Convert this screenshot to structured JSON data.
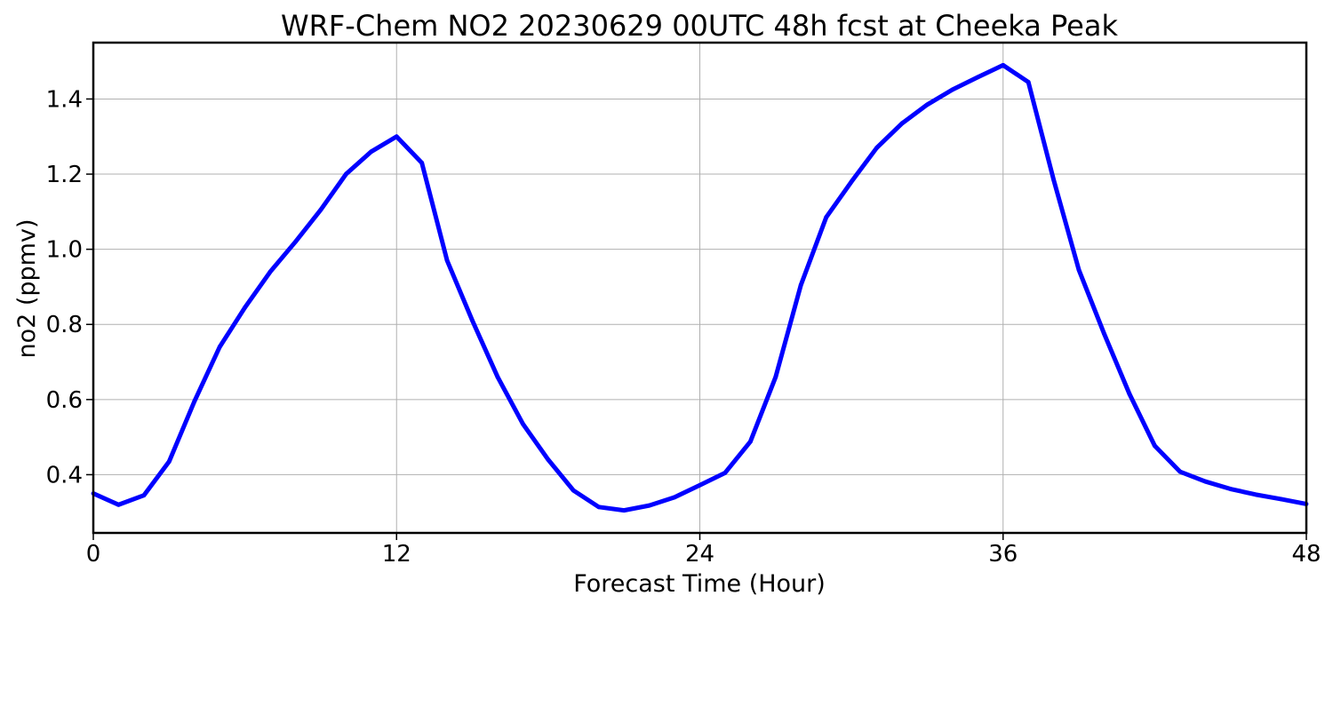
{
  "chart_data": {
    "type": "line",
    "title": "WRF-Chem NO2  20230629 00UTC 48h fcst at Cheeka Peak",
    "xlabel": "Forecast Time (Hour)",
    "ylabel": "no2  (ppmv)",
    "xlim": [
      0,
      48
    ],
    "ylim": [
      0.245,
      1.55
    ],
    "xticks": [
      0,
      12,
      24,
      36,
      48
    ],
    "xtick_labels": [
      "0",
      "12",
      "24",
      "36",
      "48"
    ],
    "yticks": [
      0.4,
      0.6,
      0.8,
      1.0,
      1.2,
      1.4
    ],
    "ytick_labels": [
      "0.4",
      "0.6",
      "0.8",
      "1.0",
      "1.2",
      "1.4"
    ],
    "grid": true,
    "series": [
      {
        "color": "#0000ff",
        "x": [
          0,
          1,
          2,
          3,
          4,
          5,
          6,
          7,
          8,
          9,
          10,
          11,
          12,
          13,
          14,
          15,
          16,
          17,
          18,
          19,
          20,
          21,
          22,
          23,
          24,
          25,
          26,
          27,
          28,
          29,
          30,
          31,
          32,
          33,
          34,
          35,
          36,
          37,
          38,
          39,
          40,
          41,
          42,
          43,
          44,
          45,
          46,
          47,
          48
        ],
        "y": [
          0.35,
          0.32,
          0.345,
          0.435,
          0.595,
          0.74,
          0.845,
          0.94,
          1.02,
          1.105,
          1.2,
          1.26,
          1.3,
          1.23,
          0.97,
          0.81,
          0.66,
          0.535,
          0.44,
          0.358,
          0.314,
          0.305,
          0.318,
          0.34,
          0.372,
          0.405,
          0.488,
          0.66,
          0.905,
          1.085,
          1.18,
          1.27,
          1.335,
          1.385,
          1.425,
          1.458,
          1.49,
          1.445,
          1.185,
          0.945,
          0.775,
          0.615,
          0.477,
          0.408,
          0.382,
          0.362,
          0.347,
          0.335,
          0.322
        ]
      }
    ]
  }
}
